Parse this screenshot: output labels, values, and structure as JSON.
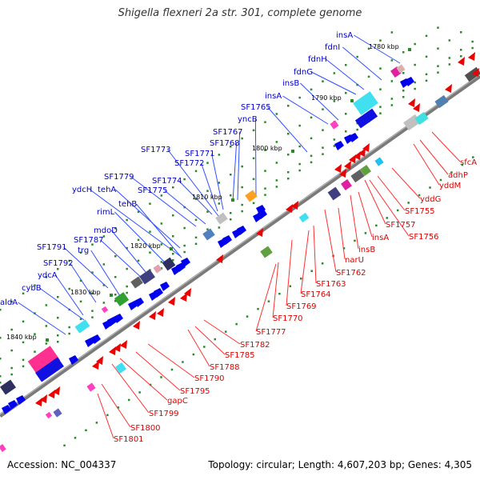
{
  "title": "Shigella flexneri 2a str. 301, complete genome",
  "footer": {
    "accession": "Accession: NC_004337",
    "summary": "Topology: circular; Length: 4,607,203 bp; Genes: 4,305"
  },
  "colors": {
    "backbone": "#7a7a7a",
    "forward_label": "#0000cc",
    "reverse_label": "#dd0000",
    "forward_gene": "#0000ee",
    "reverse_gene": "#ee0000",
    "tick_dot": "#2a8a2a"
  },
  "ticks": [
    {
      "label": "1780 kbp"
    },
    {
      "label": "1790 kbp"
    },
    {
      "label": "1800 kbp"
    },
    {
      "label": "1810 kbp"
    },
    {
      "label": "1820 kbp"
    },
    {
      "label": "1830 kbp"
    },
    {
      "label": "1840 kbp"
    }
  ],
  "forward_labels": [
    {
      "text": "insA"
    },
    {
      "text": "fdnI"
    },
    {
      "text": "fdnH"
    },
    {
      "text": "fdnG"
    },
    {
      "text": "insB"
    },
    {
      "text": "insA"
    },
    {
      "text": "SF1765"
    },
    {
      "text": "yncB"
    },
    {
      "text": "SF1767"
    },
    {
      "text": "SF1768"
    },
    {
      "text": "SF1773"
    },
    {
      "text": "SF1771"
    },
    {
      "text": "SF1772"
    },
    {
      "text": "SF1779"
    },
    {
      "text": "SF1774"
    },
    {
      "text": "tehA"
    },
    {
      "text": "ydcH"
    },
    {
      "text": "SF1775"
    },
    {
      "text": "tehB"
    },
    {
      "text": "rimL"
    },
    {
      "text": "mdoD"
    },
    {
      "text": "SF1787"
    },
    {
      "text": "SF1791"
    },
    {
      "text": "trg"
    },
    {
      "text": "SF1792"
    },
    {
      "text": "ydcA"
    },
    {
      "text": "cybB"
    },
    {
      "text": "aldA"
    }
  ],
  "reverse_labels": [
    {
      "text": "sfcA"
    },
    {
      "text": "adhP"
    },
    {
      "text": "yddM"
    },
    {
      "text": "yddG"
    },
    {
      "text": "SF1755"
    },
    {
      "text": "SF1757"
    },
    {
      "text": "SF1756"
    },
    {
      "text": "insA"
    },
    {
      "text": "insB"
    },
    {
      "text": "narU"
    },
    {
      "text": "SF1762"
    },
    {
      "text": "SF1763"
    },
    {
      "text": "SF1764"
    },
    {
      "text": "SF1769"
    },
    {
      "text": "SF1770"
    },
    {
      "text": "SF1777"
    },
    {
      "text": "SF1782"
    },
    {
      "text": "SF1785"
    },
    {
      "text": "SF1788"
    },
    {
      "text": "SF1790"
    },
    {
      "text": "SF1795"
    },
    {
      "text": "gapC"
    },
    {
      "text": "SF1799"
    },
    {
      "text": "SF1800"
    },
    {
      "text": "SF1801"
    }
  ]
}
